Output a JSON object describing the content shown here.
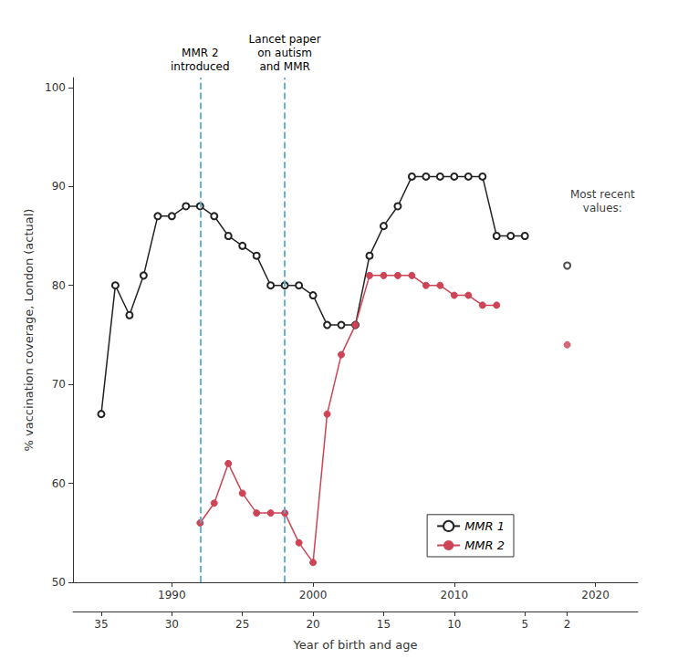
{
  "chart_data": {
    "type": "line",
    "xlabel": "Year of birth and age",
    "ylabel": "% vaccination coverage, London (actual)",
    "xlim": [
      1983,
      2023
    ],
    "xticks": [
      1990,
      2000,
      2010,
      2020
    ],
    "x2lim": [
      1983,
      2023
    ],
    "x2ticks": [
      {
        "value": 1985,
        "label": "35"
      },
      {
        "value": 1990,
        "label": "30"
      },
      {
        "value": 1995,
        "label": "25"
      },
      {
        "value": 2000,
        "label": "20"
      },
      {
        "value": 2005,
        "label": "15"
      },
      {
        "value": 2010,
        "label": "10"
      },
      {
        "value": 2015,
        "label": "5"
      },
      {
        "value": 2018,
        "label": "2"
      }
    ],
    "ylim": [
      50,
      101
    ],
    "yticks": [
      50,
      60,
      70,
      80,
      90,
      100
    ],
    "grid": false,
    "legend": "lower right",
    "series": [
      {
        "name": "MMR 1",
        "color": "#222222",
        "marker": "emptyCircle",
        "line_style": "solid",
        "x": [
          1985,
          1986,
          1987,
          1988,
          1989,
          1990,
          1991,
          1992,
          1993,
          1994,
          1995,
          1996,
          1997,
          1998,
          1999,
          2000,
          2001,
          2002,
          2003,
          2004,
          2005,
          2006,
          2007,
          2008,
          2009,
          2010,
          2011,
          2012,
          2013,
          2014,
          2015
        ],
        "values": [
          67,
          80,
          77,
          81,
          87,
          87,
          88,
          88,
          87,
          85,
          84,
          83,
          80,
          80,
          80,
          79,
          76,
          76,
          76,
          83,
          86,
          88,
          91,
          91,
          91,
          91,
          91,
          91,
          85,
          85,
          85
        ]
      },
      {
        "name": "MMR 2",
        "color": "#cc4455",
        "marker": "circle",
        "line_style": "solid",
        "x": [
          1992,
          1993,
          1994,
          1995,
          1996,
          1997,
          1998,
          1999,
          2000,
          2001,
          2002,
          2003,
          2004,
          2005,
          2006,
          2007,
          2008,
          2009,
          2010,
          2011,
          2012,
          2013
        ],
        "values": [
          56,
          58,
          62,
          59,
          57,
          57,
          57,
          54,
          52,
          67,
          73,
          76,
          81,
          81,
          81,
          81,
          80,
          80,
          79,
          79,
          78,
          78
        ]
      },
      {
        "name": "MMR 1",
        "type": "scatter",
        "color": "#222222",
        "marker": "emptyCircle",
        "x": [
          2018
        ],
        "values": [
          82
        ]
      },
      {
        "name": "MMR 2",
        "type": "scatter",
        "color": "#cc4455",
        "marker": "circle",
        "x": [
          2018
        ],
        "values": [
          74
        ]
      }
    ],
    "vlines": [
      {
        "x": 1992,
        "label": "MMR 2\nintroduced",
        "color": "#5baad4",
        "line_style": "dashed"
      },
      {
        "x": 1998,
        "label": "Lancet paper\non autism\nand MMR",
        "color": "#5baad4",
        "line_style": "dashed"
      }
    ],
    "annotations": [
      {
        "x": 2020.5,
        "y": 88.5,
        "text": "Most recent\nvalues:"
      }
    ]
  }
}
